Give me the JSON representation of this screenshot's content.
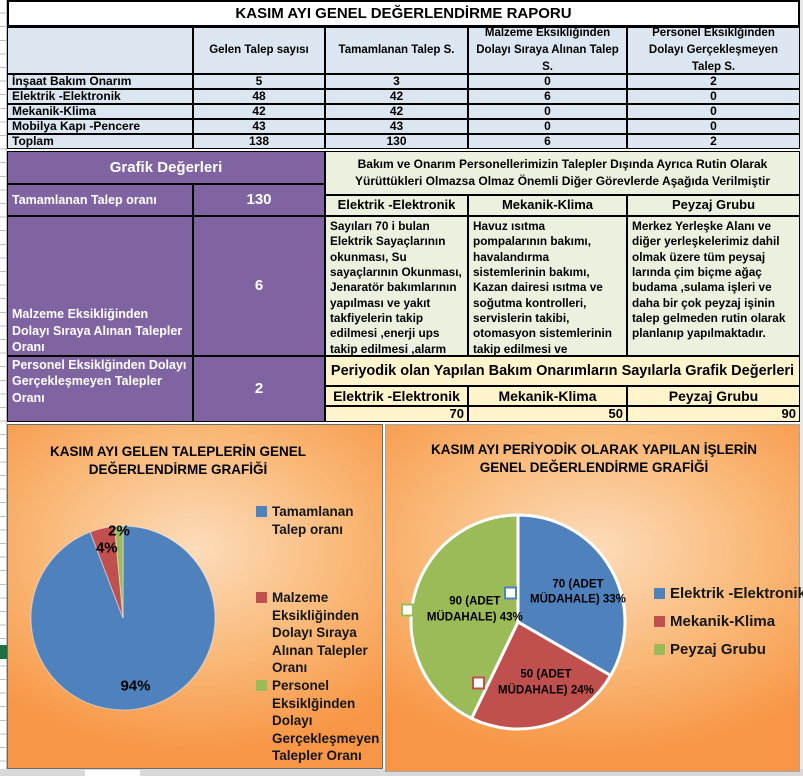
{
  "title": "KASIM AYI GENEL DEĞERLENDİRME RAPORU",
  "request_table": {
    "columns": [
      "",
      "Gelen Talep sayısı",
      "Tamamlanan Talep S.",
      "Malzeme Eksikliğinden Dolayı Sıraya Alınan Talep S.",
      "Personel Eksiklğinden Dolayı Gerçekleşmeyen Talep S."
    ],
    "rows": [
      {
        "label": "İnşaat Bakım Onarım",
        "values": [
          "5",
          "3",
          "0",
          "2"
        ]
      },
      {
        "label": "Elektrik -Elektronik",
        "values": [
          "48",
          "42",
          "6",
          "0"
        ]
      },
      {
        "label": "Mekanik-Klima",
        "values": [
          "42",
          "42",
          "0",
          "0"
        ]
      },
      {
        "label": "Mobilya Kapı -Pencere",
        "values": [
          "43",
          "43",
          "0",
          "0"
        ]
      },
      {
        "label": "Toplam",
        "values": [
          "138",
          "130",
          "6",
          "2"
        ]
      }
    ]
  },
  "grafik_degerleri": {
    "header": "Grafik Değerleri",
    "rows": [
      {
        "label": "Tamamlanan Talep oranı",
        "value": "130"
      },
      {
        "label": "Malzeme Eksikliğinden Dolayı Sıraya Alınan Talepler Oranı",
        "value": "6"
      },
      {
        "label": "Personel Eksiklğinden Dolayı Gerçekleşmeyen Talepler Oranı",
        "value": "2"
      }
    ]
  },
  "rutin_section": {
    "header": "Bakım ve Onarım Personellerimizin Talepler Dışında Ayrıca Rutin Olarak Yürüttükleri Olmazsa Olmaz Önemli Diğer Görevlerde Aşağıda Verilmiştir",
    "columns": [
      {
        "title": "Elektrik -Elektronik",
        "text": "Sayıları 70 i bulan Elektrik Sayaçlarının okunması, Su sayaçlarının Okunması, Jenaratör bakımlarının yapılması ve yakıt takfiyelerin takip edilmesi ,enerji ups takip edilmesi ,alarm sistemlerinin kontrolü"
      },
      {
        "title": "Mekanik-Klima",
        "text": "Havuz ısıtma pompalarının bakımı, havalandırma sistemlerinin bakımı,  Kazan dairesi ısıtma ve soğutma kontrolleri,   servislerin takibi, otomasyon sistemlerinin takip edilmesi ve klimaların takibi gibi talepler oluşmadan rutin olarak takip edilir"
      },
      {
        "title": "Peyzaj Grubu",
        "text": "Merkez Yerleşke Alanı ve diğer yerleşkelerimiz dahil olmak üzere tüm peysaj larında çim biçme ağaç budama ,sulama işleri ve daha bir çok peyzaj işinin talep gelmeden rutin olarak planlanıp yapılmaktadır."
      }
    ]
  },
  "periyodik_section": {
    "title": "Periyodik olan Yapılan Bakım Onarımların Sayılarla Grafik Değerleri",
    "columns": [
      {
        "title": "Elektrik -Elektronik",
        "value": "70"
      },
      {
        "title": "Mekanik-Klima",
        "value": "50"
      },
      {
        "title": "Peyzaj Grubu",
        "value": "90"
      }
    ]
  },
  "chart_data": [
    {
      "type": "pie",
      "title": "KASIM AYI GELEN TALEPLERİN GENEL DEĞERLENDİRME GRAFİĞİ",
      "categories": [
        "Tamamlanan Talep oranı",
        "Malzeme Eksikliğinden Dolayı Sıraya Alınan Talepler Oranı",
        "Personel Eksiklğinden Dolayı Gerçekleşmeyen Talepler Oranı"
      ],
      "values": [
        130,
        6,
        2
      ],
      "slice_labels": [
        "94%",
        "4%",
        "2%"
      ],
      "colors": [
        "#4F81BD",
        "#C0504D",
        "#9BBB59"
      ],
      "legend_position": "right"
    },
    {
      "type": "pie",
      "title": "KASIM AYI PERİYODİK OLARAK YAPILAN İŞLERİN GENEL DEĞERLENDİRME GRAFİĞİ",
      "categories": [
        "Elektrik -Elektronik",
        "Mekanik-Klima",
        "Peyzaj Grubu"
      ],
      "values": [
        70,
        50,
        90
      ],
      "slice_labels": [
        "70 (ADET MÜDAHALE) 33%",
        "50 (ADET MÜDAHALE) 24%",
        "90 (ADET MÜDAHALE) 43%"
      ],
      "colors": [
        "#4F81BD",
        "#C0504D",
        "#9BBB59"
      ],
      "legend_position": "right"
    }
  ],
  "colors": {
    "accent_blue": "#4F81BD",
    "accent_red": "#C0504D",
    "accent_green": "#9BBB59",
    "purple": "#8064A2",
    "light_blue": "#DCE6F1",
    "pale_green": "#EBF1DE",
    "pale_yellow": "#FFF4CC"
  }
}
